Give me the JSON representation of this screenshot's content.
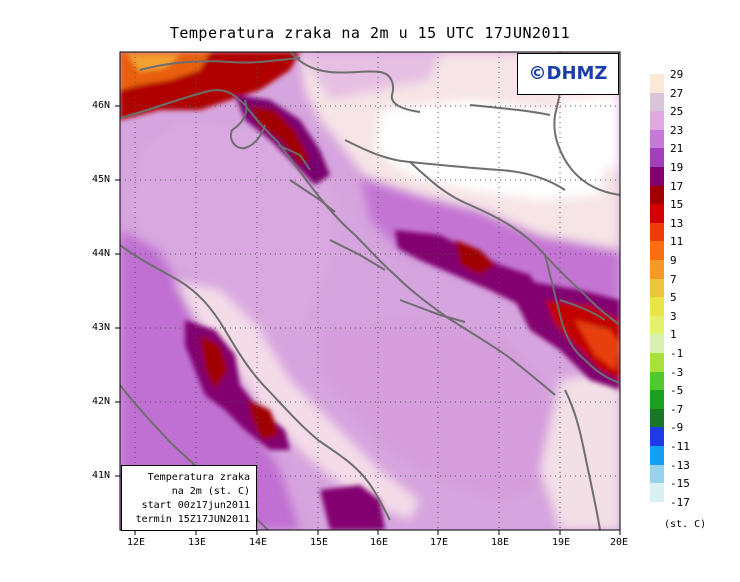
{
  "title": "Temperatura zraka na 2m u 15 UTC 17JUN2011",
  "copyright": "©DHMZ",
  "info_box": {
    "line1": "Temperatura zraka",
    "line2": "na 2m (st. C)",
    "line3": "start 00z17jun2011",
    "line4": "termin 15Z17JUN2011"
  },
  "axes": {
    "lon_labels": [
      "12E",
      "13E",
      "14E",
      "15E",
      "16E",
      "17E",
      "18E",
      "19E",
      "20E"
    ],
    "lat_labels": [
      "46N",
      "45N",
      "44N",
      "43N",
      "42N",
      "41N"
    ]
  },
  "legend": {
    "unit": "(st. C)",
    "labels": [
      "29",
      "27",
      "25",
      "23",
      "21",
      "19",
      "17",
      "15",
      "13",
      "11",
      "9",
      "7",
      "5",
      "3",
      "1",
      "-1",
      "-3",
      "-5",
      "-7",
      "-9",
      "-11",
      "-13",
      "-15",
      "-17"
    ],
    "colors": [
      "#fbe8d6",
      "#d8c6d8",
      "#e0a8e0",
      "#c878d8",
      "#a33fbe",
      "#820070",
      "#a00000",
      "#d40000",
      "#ee3c0a",
      "#fa6e14",
      "#f49a28",
      "#eec33e",
      "#e8e44a",
      "#e4f06e",
      "#d8f0b0",
      "#a8e03c",
      "#50c830",
      "#1ea01e",
      "#187828",
      "#1e3ce6",
      "#14a0f0",
      "#96d2ea",
      "#d8f0f2",
      "#ffffff"
    ]
  }
}
